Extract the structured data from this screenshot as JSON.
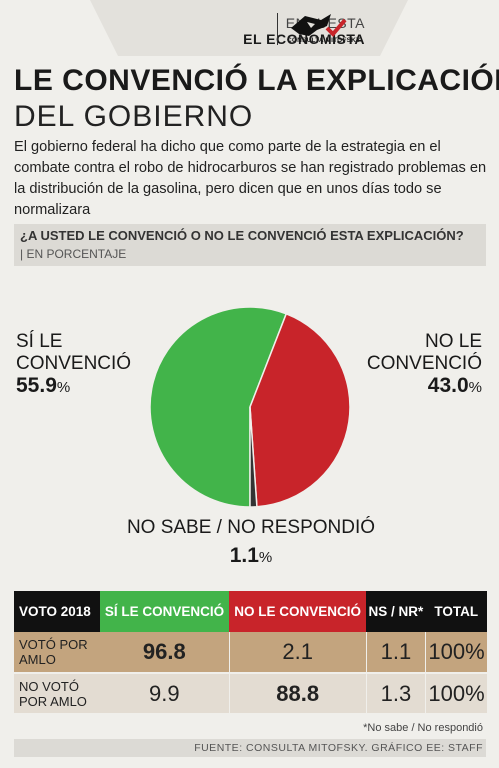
{
  "header": {
    "survey_line1": "ENCUESTA",
    "survey_line2": "EL ECONOMISTA",
    "logo_text": "CONSULTA MITOFSKY",
    "logo_icon": "consulta-mitofsky-logo"
  },
  "title_line1": "LE CONVENCIÓ LA EXPLICACIÓN",
  "title_line2": "DEL GOBIERNO",
  "intro": "El gobierno federal ha dicho que como parte de la estrategia en el combate contra el robo de hidrocarburos se han registrado problemas en la distribución de la gasolina, pero dicen que en unos días todo se normalizara",
  "question": "¿A USTED LE CONVENCIÓ O NO LE CONVENCIÓ ESTA EXPLICACIÓN?",
  "unit": "| EN PORCENTAJE",
  "labels": {
    "yes_line1": "SÍ LE",
    "yes_line2": "CONVENCIÓ",
    "yes_value": "55.9",
    "no_line1": "NO LE",
    "no_line2": "CONVENCIÓ",
    "no_value": "43.0",
    "ns_line": "NO SABE / NO RESPONDIÓ",
    "ns_value": "1.1",
    "pct_sign": "%"
  },
  "colors": {
    "yes": "#42b44a",
    "no": "#c8242a",
    "ns": "#333333"
  },
  "chart_data": [
    {
      "type": "pie",
      "title": "¿A USTED LE CONVENCIÓ O NO LE CONVENCIÓ ESTA EXPLICACIÓN?",
      "unit": "%",
      "categories": [
        "SÍ LE CONVENCIÓ",
        "NO LE CONVENCIÓ",
        "NO SABE / NO RESPONDIÓ"
      ],
      "values": [
        55.9,
        43.0,
        1.1
      ]
    },
    {
      "type": "table",
      "columns": [
        "VOTO 2018",
        "SÍ LE CONVENCIÓ",
        "NO LE CONVENCIÓ",
        "NS / NR*",
        "TOTAL"
      ],
      "rows": [
        [
          "VOTÓ POR AMLO",
          "96.8",
          "2.1",
          "1.1",
          "100%"
        ],
        [
          "NO VOTÓ POR AMLO",
          "9.9",
          "88.8",
          "1.3",
          "100%"
        ]
      ]
    }
  ],
  "table": {
    "headers": [
      "VOTO 2018",
      "SÍ LE CONVENCIÓ",
      "NO LE CONVENCIÓ",
      "NS / NR*",
      "TOTAL"
    ],
    "rows": [
      [
        "VOTÓ POR AMLO",
        "96.8",
        "2.1",
        "1.1",
        "100%"
      ],
      [
        "NO VOTÓ POR AMLO",
        "9.9",
        "88.8",
        "1.3",
        "100%"
      ]
    ]
  },
  "note": "*No sabe / No respondió",
  "source": "FUENTE: CONSULTA MITOFSKY. GRÁFICO EE: STAFF"
}
